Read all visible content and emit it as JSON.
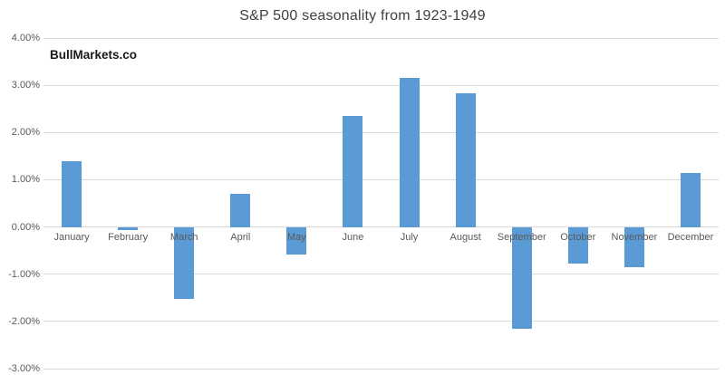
{
  "title": "S&P 500 seasonality from 1923-1949",
  "watermark": "BullMarkets.co",
  "colors": {
    "bar": "#5B9BD5",
    "gridline": "#D9D9D9",
    "title": "#404040",
    "axis_labels": "#595959"
  },
  "chart_data": {
    "type": "bar",
    "title": "S&P 500 seasonality from 1923-1949",
    "categories": [
      "January",
      "February",
      "March",
      "April",
      "May",
      "June",
      "July",
      "August",
      "September",
      "October",
      "November",
      "December"
    ],
    "values": [
      1.4,
      -0.07,
      -1.52,
      0.71,
      -0.58,
      2.35,
      3.15,
      2.83,
      -2.15,
      -0.78,
      -0.86,
      1.14
    ],
    "xlabel": "",
    "ylabel": "",
    "y_ticks": [
      "4.00%",
      "3.00%",
      "2.00%",
      "1.00%",
      "0.00%",
      "-1.00%",
      "-2.00%",
      "-3.00%"
    ],
    "ylim": [
      -3,
      4
    ],
    "grid": true,
    "legend": "none",
    "bar_color": "#5B9BD5"
  }
}
